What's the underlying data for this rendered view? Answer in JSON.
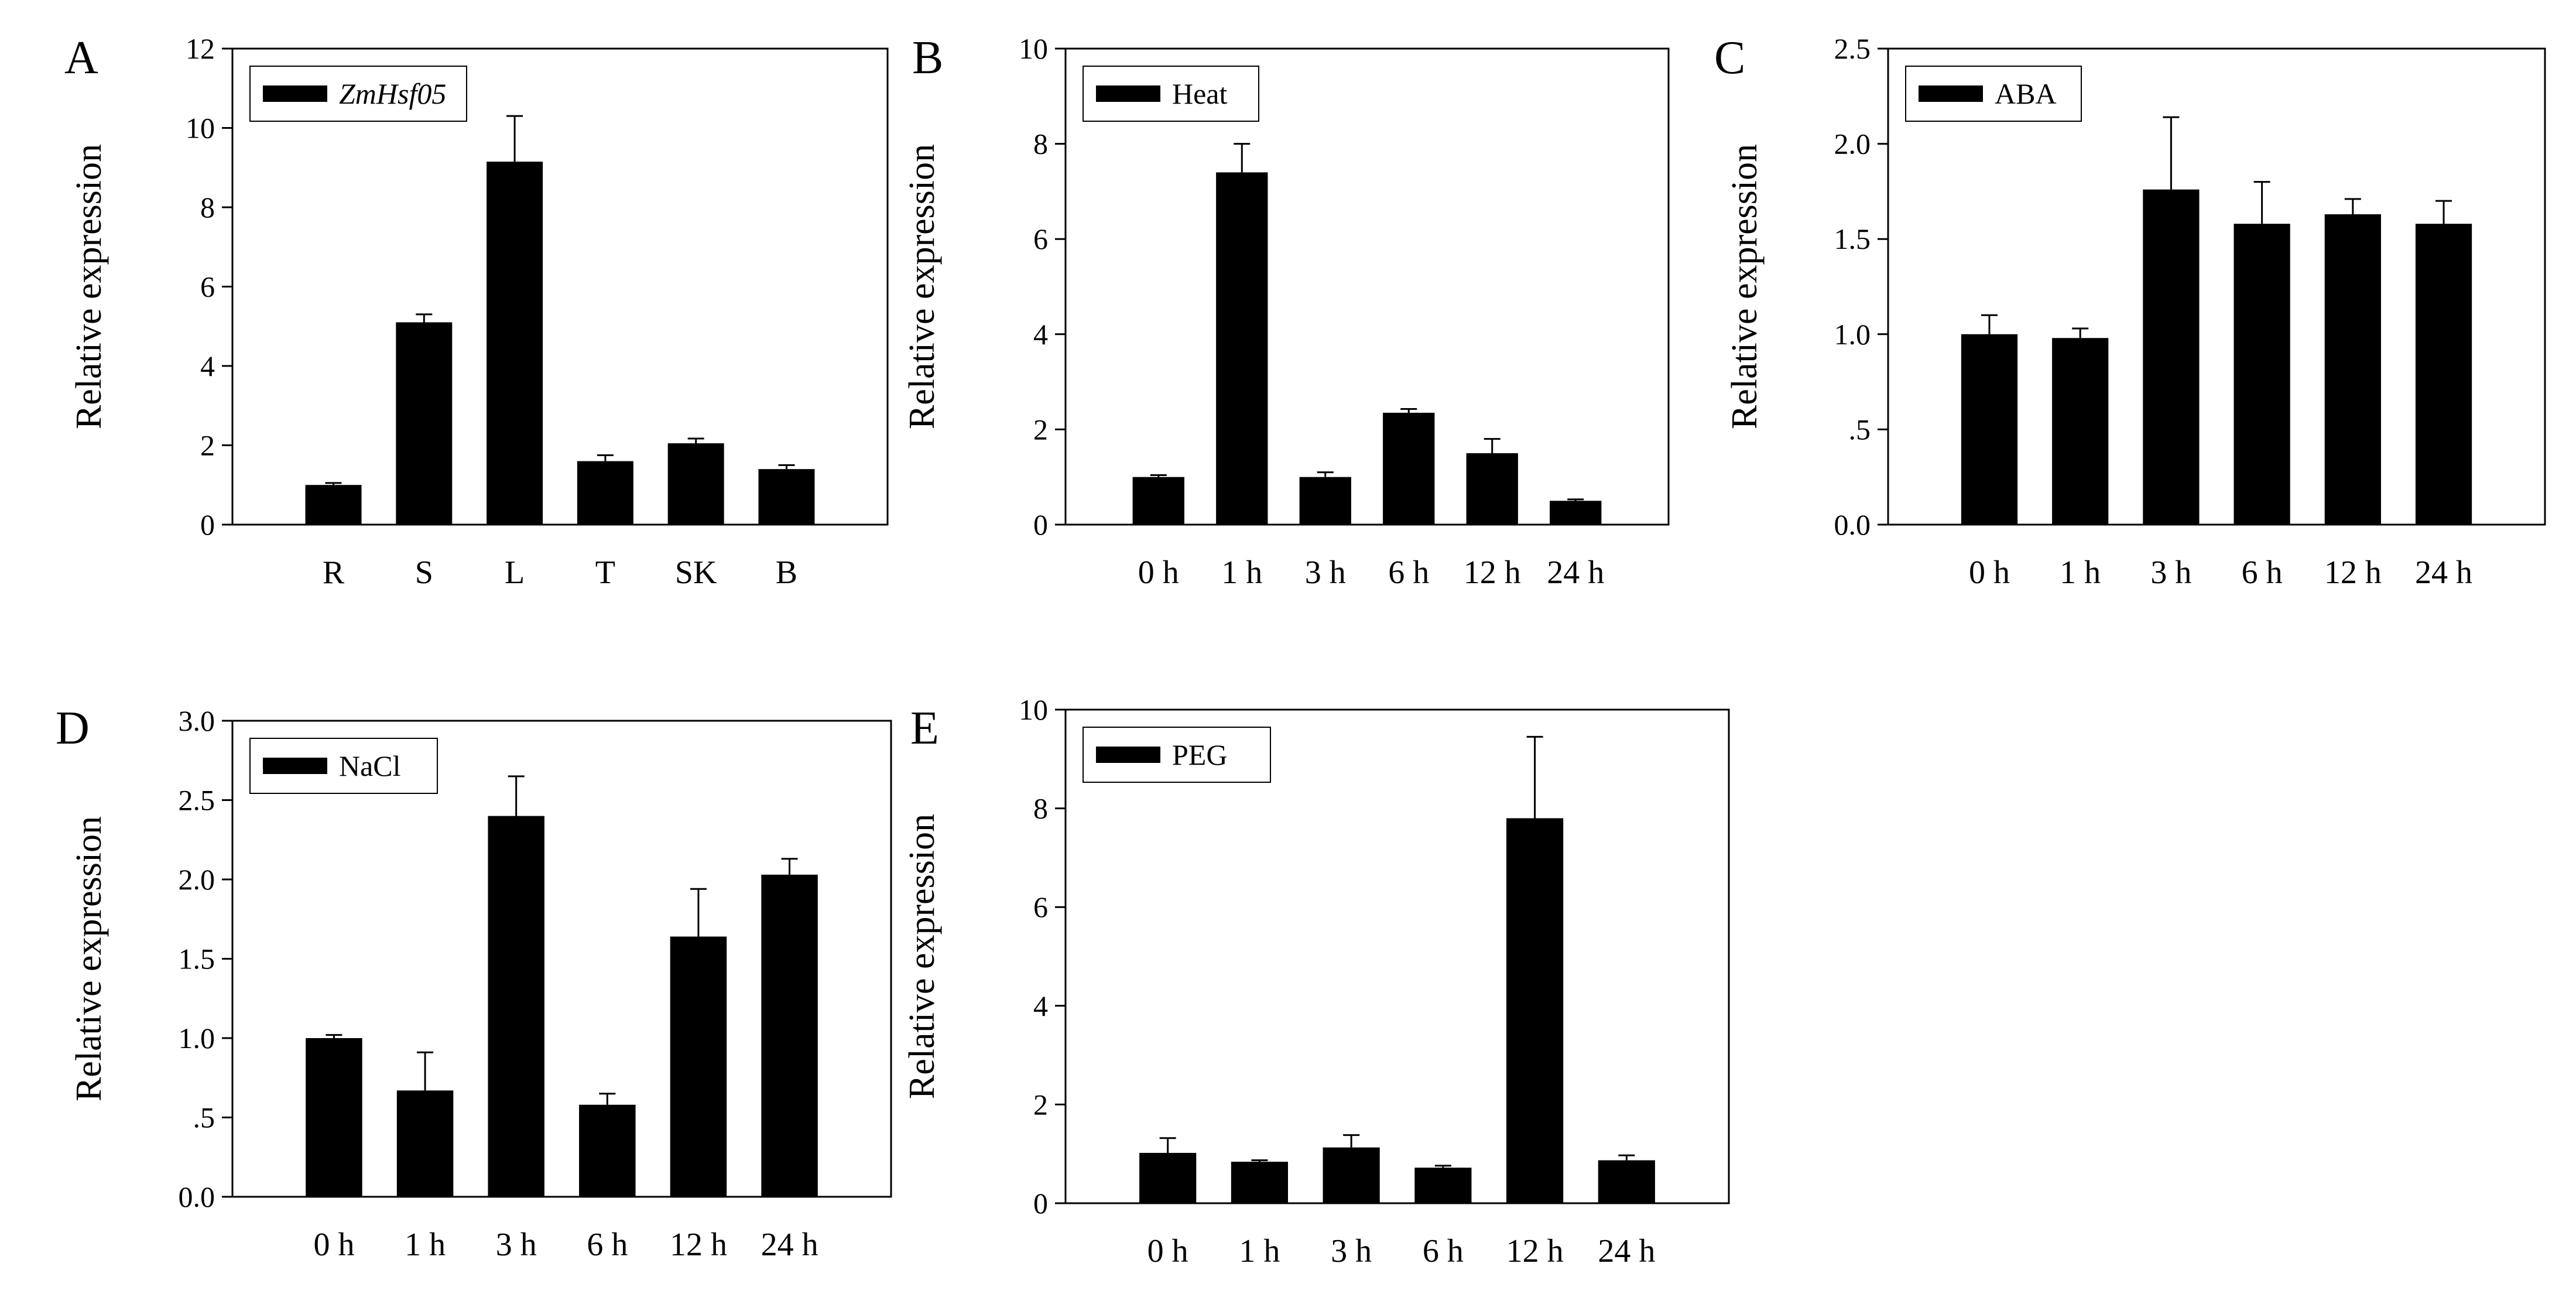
{
  "colors": {
    "bar": "#000000",
    "axis": "#000000",
    "background": "#ffffff"
  },
  "chart_data": [
    {
      "panel": "A",
      "type": "bar",
      "legend": "ZmHsf05",
      "legend_italic": true,
      "ylabel": "Relative expression",
      "ylim": [
        0,
        12
      ],
      "yticks": [
        0,
        2,
        4,
        6,
        8,
        10,
        12
      ],
      "ytick_labels": [
        "0",
        "2",
        "4",
        "6",
        "8",
        "10",
        "12"
      ],
      "categories": [
        "R",
        "S",
        "L",
        "T",
        "SK",
        "B"
      ],
      "values": [
        1.0,
        5.1,
        9.15,
        1.6,
        2.05,
        1.4
      ],
      "errors": [
        0.05,
        0.2,
        1.15,
        0.15,
        0.12,
        0.1
      ]
    },
    {
      "panel": "B",
      "type": "bar",
      "legend": "Heat",
      "legend_italic": false,
      "ylabel": "Relative expression",
      "ylim": [
        0,
        10
      ],
      "yticks": [
        0,
        2,
        4,
        6,
        8,
        10
      ],
      "ytick_labels": [
        "0",
        "2",
        "4",
        "6",
        "8",
        "10"
      ],
      "categories": [
        "0 h",
        "1 h",
        "3 h",
        "6 h",
        "12 h",
        "24 h"
      ],
      "values": [
        1.0,
        7.4,
        1.0,
        2.35,
        1.5,
        0.5
      ],
      "errors": [
        0.04,
        0.6,
        0.1,
        0.08,
        0.3,
        0.03
      ]
    },
    {
      "panel": "C",
      "type": "bar",
      "legend": "ABA",
      "legend_italic": false,
      "ylabel": "Relative expression",
      "ylim": [
        0,
        2.5
      ],
      "yticks": [
        0,
        0.5,
        1.0,
        1.5,
        2.0,
        2.5
      ],
      "ytick_labels": [
        "0.0",
        ".5",
        "1.0",
        "1.5",
        "2.0",
        "2.5"
      ],
      "categories": [
        "0 h",
        "1 h",
        "3 h",
        "6 h",
        "12 h",
        "24 h"
      ],
      "values": [
        1.0,
        0.98,
        1.76,
        1.58,
        1.63,
        1.58
      ],
      "errors": [
        0.1,
        0.05,
        0.38,
        0.22,
        0.08,
        0.12
      ]
    },
    {
      "panel": "D",
      "type": "bar",
      "legend": "NaCl",
      "legend_italic": false,
      "ylabel": "Relative expression",
      "ylim": [
        0,
        3.0
      ],
      "yticks": [
        0,
        0.5,
        1.0,
        1.5,
        2.0,
        2.5,
        3.0
      ],
      "ytick_labels": [
        "0.0",
        ".5",
        "1.0",
        "1.5",
        "2.0",
        "2.5",
        "3.0"
      ],
      "categories": [
        "0 h",
        "1 h",
        "3 h",
        "6 h",
        "12 h",
        "24 h"
      ],
      "values": [
        1.0,
        0.67,
        2.4,
        0.58,
        1.64,
        2.03
      ],
      "errors": [
        0.02,
        0.24,
        0.25,
        0.07,
        0.3,
        0.1
      ]
    },
    {
      "panel": "E",
      "type": "bar",
      "legend": "PEG",
      "legend_italic": false,
      "ylabel": "Relative expression",
      "ylim": [
        0,
        10
      ],
      "yticks": [
        0,
        2,
        4,
        6,
        8,
        10
      ],
      "ytick_labels": [
        "0",
        "2",
        "4",
        "6",
        "8",
        "10"
      ],
      "categories": [
        "0 h",
        "1 h",
        "3 h",
        "6 h",
        "12 h",
        "24 h"
      ],
      "values": [
        1.02,
        0.84,
        1.13,
        0.72,
        7.8,
        0.87
      ],
      "errors": [
        0.3,
        0.03,
        0.25,
        0.04,
        1.65,
        0.1
      ]
    }
  ]
}
